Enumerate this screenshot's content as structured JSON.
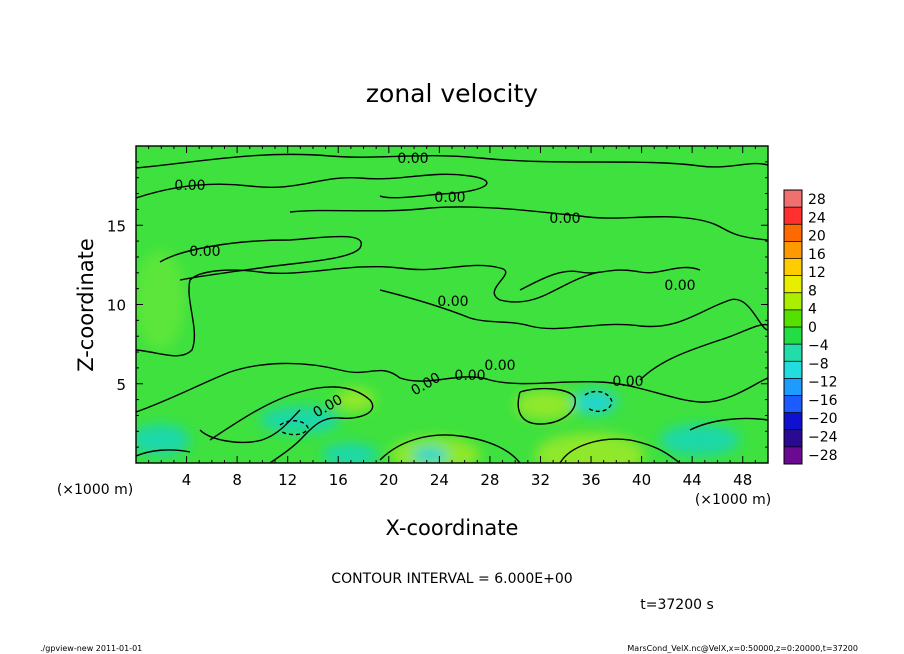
{
  "chart_data": {
    "type": "heatmap",
    "title": "zonal velocity",
    "xlabel": "X-coordinate",
    "ylabel": "Z-coordinate",
    "x_unit_left": "(×1000 m)",
    "x_unit_right": "(×1000 m)",
    "x_ticks": [
      4,
      8,
      12,
      16,
      20,
      24,
      28,
      32,
      36,
      40,
      44,
      48
    ],
    "y_ticks": [
      5,
      10,
      15
    ],
    "xlim": [
      0,
      50
    ],
    "ylim": [
      0,
      20
    ],
    "contour_interval_text": "CONTOUR INTERVAL = 6.000E+00",
    "time_text": "t=37200 s",
    "contour_labels": [
      "0.00",
      "0.00",
      "0.00",
      "0.00",
      "0.00",
      "0.00",
      "0.00",
      "0.00",
      "0.00",
      "0.00",
      "0.00",
      "0.00"
    ],
    "colorbar": {
      "labels": [
        "28",
        "24",
        "20",
        "16",
        "12",
        "8",
        "4",
        "0",
        "−4",
        "−8",
        "−12",
        "−16",
        "−20",
        "−24",
        "−28"
      ],
      "colors": [
        "#f07070",
        "#ff3030",
        "#ff6a00",
        "#ff9900",
        "#ffcc00",
        "#e8ee00",
        "#aaee00",
        "#55e000",
        "#22dd44",
        "#22ddaa",
        "#22dddd",
        "#1c9cff",
        "#1c5cff",
        "#1010d0",
        "#2a0a90",
        "#6a0a90"
      ]
    },
    "field_colors": {
      "background": "#3ee13e",
      "positive": "#8fe82a",
      "negative": "#1fd8a8",
      "strong_negative": "#22d6d0"
    }
  },
  "footer": {
    "left": "./gpview-new  2011-01-01",
    "right": "MarsCond_VelX.nc@VelX,x=0:50000,z=0:20000,t=37200"
  }
}
